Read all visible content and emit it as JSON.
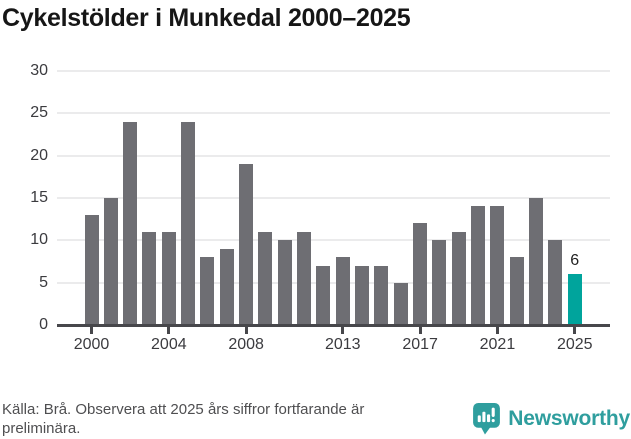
{
  "title": "Cykelstölder i Munkedal 2000–2025",
  "chart_data": {
    "type": "bar",
    "title": "Cykelstölder i Munkedal 2000–2025",
    "xlabel": "",
    "ylabel": "",
    "x": [
      2000,
      2001,
      2002,
      2003,
      2004,
      2005,
      2006,
      2007,
      2008,
      2009,
      2010,
      2011,
      2012,
      2013,
      2014,
      2015,
      2016,
      2017,
      2018,
      2019,
      2020,
      2021,
      2022,
      2023,
      2024,
      2025
    ],
    "values": [
      13,
      15,
      24,
      11,
      11,
      24,
      8,
      9,
      19,
      11,
      10,
      11,
      7,
      8,
      7,
      7,
      5,
      12,
      10,
      11,
      14,
      14,
      8,
      15,
      10,
      6
    ],
    "ylim": [
      0,
      30
    ],
    "yticks": [
      0,
      5,
      10,
      15,
      20,
      25,
      30
    ],
    "xticks": [
      2000,
      2004,
      2008,
      2013,
      2017,
      2021,
      2025
    ],
    "grid": true,
    "legend": "none",
    "bar_color": "#6e6e73",
    "highlight_index": 25,
    "highlight_color": "#00a49c",
    "annotation": "6"
  },
  "footer": {
    "source_text": "Källa: Brå. Observera att 2025 års siffror fortfarande är preliminära.",
    "brand": "Newsworthy"
  },
  "colors": {
    "grid": "#ebebec",
    "axis": "#47474b",
    "tick_text": "#3b3b3f",
    "title_text": "#161616",
    "footer_text": "#4f4f51",
    "brand_teal": "#2f9e9e"
  },
  "icons": {
    "brand_icon": "newsworthy-speech-bubble-chart-icon"
  }
}
